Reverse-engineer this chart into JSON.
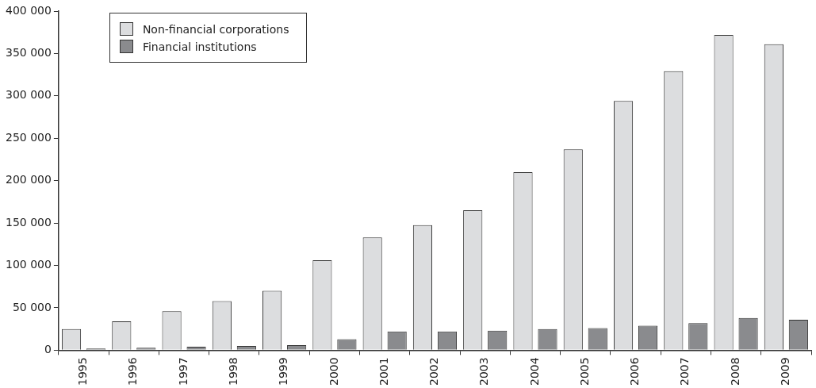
{
  "chart_data": {
    "type": "bar",
    "categories": [
      "1995",
      "1996",
      "1997",
      "1998",
      "1999",
      "2000",
      "2001",
      "2002",
      "2003",
      "2004",
      "2005",
      "2006",
      "2007",
      "2008",
      "2009"
    ],
    "series": [
      {
        "name": "Non-financial corporations",
        "color": "#dcdddf",
        "values": [
          25000,
          34000,
          46000,
          58000,
          70000,
          106000,
          133000,
          147500,
          165000,
          210000,
          237000,
          294000,
          329000,
          372000,
          361000
        ]
      },
      {
        "name": "Financial institutions",
        "color": "#8a8b8e",
        "values": [
          2000,
          3000,
          4000,
          5000,
          6000,
          13000,
          22000,
          22000,
          23000,
          25000,
          26000,
          29000,
          32000,
          38000,
          36000
        ]
      }
    ],
    "ylim": [
      0,
      400000
    ],
    "yticks": [
      {
        "value": 0,
        "label": "0"
      },
      {
        "value": 50000,
        "label": "50 000"
      },
      {
        "value": 100000,
        "label": "100 000"
      },
      {
        "value": 150000,
        "label": "150 000"
      },
      {
        "value": 200000,
        "label": "200 000"
      },
      {
        "value": 250000,
        "label": "250 000"
      },
      {
        "value": 300000,
        "label": "300 000"
      },
      {
        "value": 350000,
        "label": "350 000"
      },
      {
        "value": 400000,
        "label": "400 000"
      }
    ],
    "grid": false,
    "legend": "top left"
  }
}
